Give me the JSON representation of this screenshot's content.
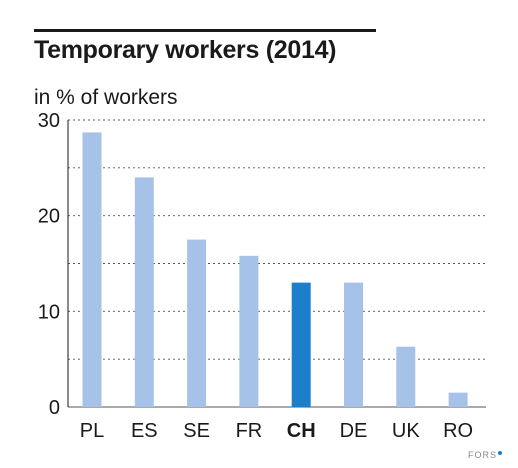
{
  "chart_data": {
    "type": "bar",
    "title": "Temporary workers (2014)",
    "subtitle": "in % of workers",
    "categories": [
      "PL",
      "ES",
      "SE",
      "FR",
      "CH",
      "DE",
      "UK",
      "RO"
    ],
    "values": [
      28.7,
      24.0,
      17.5,
      15.8,
      13.0,
      13.0,
      6.3,
      1.5
    ],
    "highlight": "CH",
    "ylim": [
      0,
      30
    ],
    "yticks": [
      0,
      10,
      20,
      30
    ],
    "grid": "dashed horizontal every 5",
    "colors": {
      "bar": "#a6c2e8",
      "highlight": "#1b7fcb",
      "text": "#1a1a1a",
      "grid": "#555555"
    }
  },
  "credit": "FORS"
}
